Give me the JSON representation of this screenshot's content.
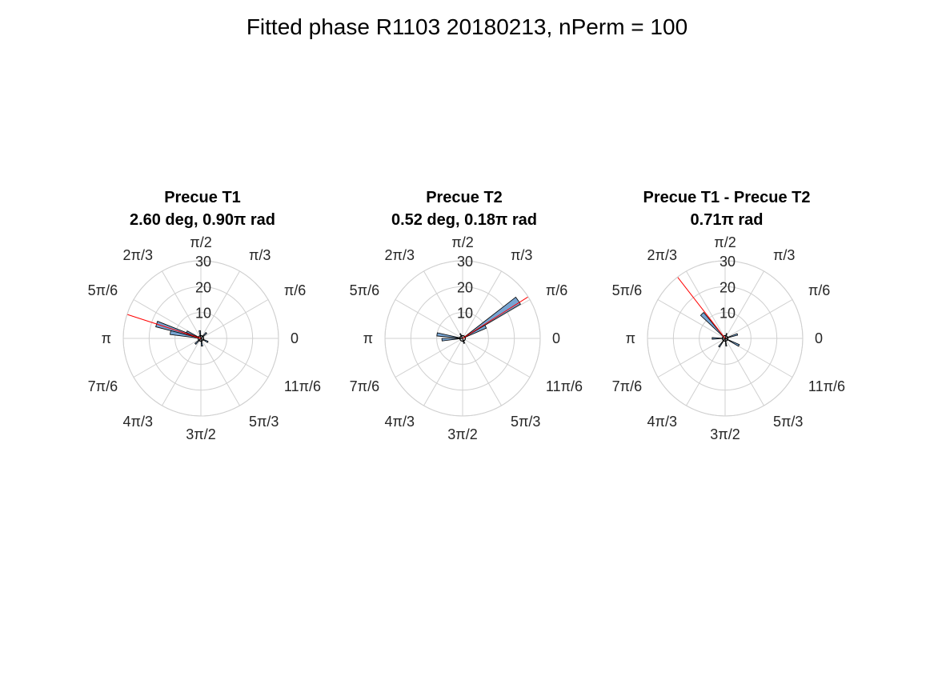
{
  "figure": {
    "title": "Fitted phase R1103 20180213, nPerm = 100"
  },
  "colors": {
    "bar_fill": "#77a4d2",
    "bar_edge": "#000000",
    "mean_line": "#ff0000",
    "grid": "#d0d0d0"
  },
  "chart_data": [
    {
      "type": "polar-histogram",
      "title_lines": [
        "Precue T1",
        "2.60 deg, 0.90π rad"
      ],
      "rlim": [
        0,
        30
      ],
      "r_ticks": [
        10,
        20,
        30
      ],
      "theta_tick_labels": [
        "0",
        "π/6",
        "π/3",
        "π/2",
        "2π/3",
        "5π/6",
        "π",
        "7π/6",
        "4π/3",
        "3π/2",
        "5π/3",
        "11π/6"
      ],
      "mean_angle_pi": 0.9,
      "bins": [
        {
          "center_pi": 0.9,
          "width_pi": 0.04,
          "value": 18
        },
        {
          "center_pi": 0.94,
          "width_pi": 0.04,
          "value": 12
        },
        {
          "center_pi": 0.86,
          "width_pi": 0.04,
          "value": 6
        },
        {
          "center_pi": 0.25,
          "width_pi": 0.06,
          "value": 3
        },
        {
          "center_pi": 0.55,
          "width_pi": 0.06,
          "value": 3
        },
        {
          "center_pi": 1.25,
          "width_pi": 0.06,
          "value": 3
        },
        {
          "center_pi": 1.55,
          "width_pi": 0.06,
          "value": 3
        },
        {
          "center_pi": 1.85,
          "width_pi": 0.06,
          "value": 3
        }
      ]
    },
    {
      "type": "polar-histogram",
      "title_lines": [
        "Precue T2",
        "0.52 deg, 0.18π rad"
      ],
      "rlim": [
        0,
        30
      ],
      "r_ticks": [
        10,
        20,
        30
      ],
      "theta_tick_labels": [
        "0",
        "π/6",
        "π/3",
        "π/2",
        "2π/3",
        "5π/6",
        "π",
        "7π/6",
        "4π/3",
        "3π/2",
        "5π/3",
        "11π/6"
      ],
      "mean_angle_pi": 0.18,
      "bins": [
        {
          "center_pi": 0.19,
          "width_pi": 0.04,
          "value": 26
        },
        {
          "center_pi": 0.15,
          "width_pi": 0.04,
          "value": 10
        },
        {
          "center_pi": 0.95,
          "width_pi": 0.04,
          "value": 10
        },
        {
          "center_pi": 1.02,
          "width_pi": 0.04,
          "value": 8
        },
        {
          "center_pi": 0.65,
          "width_pi": 0.06,
          "value": 2
        },
        {
          "center_pi": 1.6,
          "width_pi": 0.06,
          "value": 2
        }
      ]
    },
    {
      "type": "polar-histogram",
      "title_lines": [
        "Precue T1 - Precue T2",
        "0.71π rad"
      ],
      "rlim": [
        0,
        30
      ],
      "r_ticks": [
        10,
        20,
        30
      ],
      "theta_tick_labels": [
        "0",
        "π/6",
        "π/3",
        "π/2",
        "2π/3",
        "5π/6",
        "π",
        "7π/6",
        "4π/3",
        "3π/2",
        "5π/3",
        "11π/6"
      ],
      "mean_angle_pi": 0.71,
      "bins": [
        {
          "center_pi": 0.74,
          "width_pi": 0.04,
          "value": 13
        },
        {
          "center_pi": 1.85,
          "width_pi": 0.04,
          "value": 6
        },
        {
          "center_pi": 0.1,
          "width_pi": 0.04,
          "value": 5
        },
        {
          "center_pi": 1.0,
          "width_pi": 0.04,
          "value": 5
        },
        {
          "center_pi": 1.3,
          "width_pi": 0.04,
          "value": 4
        },
        {
          "center_pi": 1.55,
          "width_pi": 0.04,
          "value": 3
        },
        {
          "center_pi": 0.4,
          "width_pi": 0.04,
          "value": 2
        }
      ]
    }
  ]
}
